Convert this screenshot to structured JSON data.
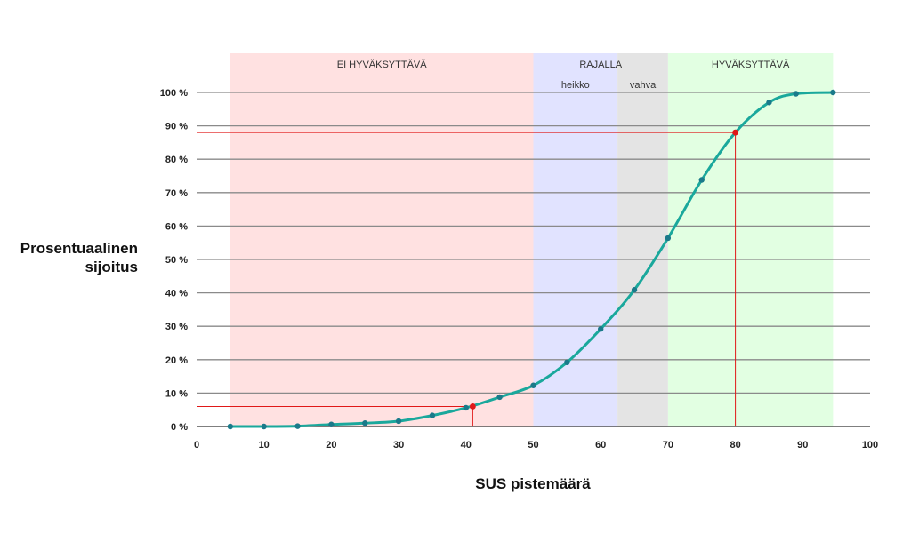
{
  "chart_data": {
    "type": "line",
    "title": "",
    "xlabel": "SUS pistemäärä",
    "ylabel_lines": [
      "Prosentuaalinen",
      "sijoitus"
    ],
    "xlim": [
      0,
      100
    ],
    "ylim": [
      0,
      100
    ],
    "x_ticks": [
      0,
      10,
      20,
      30,
      40,
      50,
      60,
      70,
      80,
      90,
      100
    ],
    "y_ticks": [
      0,
      10,
      20,
      30,
      40,
      50,
      60,
      70,
      80,
      90,
      100
    ],
    "y_tick_labels": [
      "0 %",
      "10 %",
      "20 %",
      "30 %",
      "40 %",
      "50 %",
      "60 %",
      "70 %",
      "80 %",
      "90 %",
      "100 %"
    ],
    "grid": "horizontal",
    "line_color": "#1aa89c",
    "point_color": "#1a7a8a",
    "highlight_color": "#e01818",
    "series": [
      {
        "x": [
          5,
          10,
          15,
          20,
          25,
          30,
          35,
          40,
          45,
          50,
          55,
          60,
          65,
          70,
          75,
          80,
          85,
          89,
          94.5
        ],
        "y": [
          0,
          0,
          0.1,
          0.6,
          1.0,
          1.6,
          3.3,
          5.6,
          8.8,
          12.3,
          19.2,
          29.2,
          40.9,
          56.4,
          73.8,
          88.0,
          97.0,
          99.6,
          100
        ]
      }
    ],
    "highlights": [
      {
        "x": 41,
        "y": 6
      },
      {
        "x": 80,
        "y": 88
      }
    ],
    "zones": [
      {
        "label": "EI HYVÄKSYTTÄVÄ",
        "from": 5,
        "to": 50,
        "color": "#ffe1e1"
      },
      {
        "label": "",
        "from": 50,
        "to": 62.5,
        "color": "#e1e3ff",
        "sublabel": "heikko"
      },
      {
        "label": "",
        "from": 62.5,
        "to": 70,
        "color": "#e4e4e4",
        "sublabel": "vahva"
      },
      {
        "label": "HYVÄKSYTTÄVÄ",
        "from": 70,
        "to": 94.5,
        "color": "#e2ffe2"
      }
    ],
    "group_label": {
      "label": "RAJALLA",
      "from": 50,
      "to": 70
    }
  }
}
